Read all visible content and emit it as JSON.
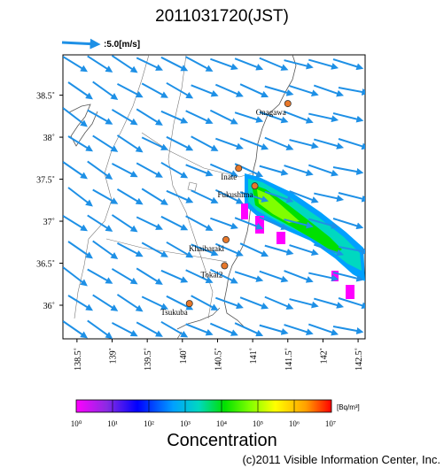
{
  "title": "2011031720(JST)",
  "wind_legend": {
    "label": ":5.0[m/s]",
    "reference_speed_ms": 5.0,
    "color": "#1e90e6"
  },
  "axes": {
    "lon_range": [
      138.3,
      142.6
    ],
    "lat_range": [
      35.6,
      38.98
    ],
    "x_ticks": [
      "138.5˚",
      "139˚",
      "139.5˚",
      "140˚",
      "140.5˚",
      "141˚",
      "141.5˚",
      "142˚",
      "142.5˚"
    ],
    "x_tick_values": [
      138.5,
      139.0,
      139.5,
      140.0,
      140.5,
      141.0,
      141.5,
      142.0,
      142.5
    ],
    "y_ticks": [
      "38.5˚",
      "38˚",
      "37.5˚",
      "37˚",
      "36.5˚",
      "36˚"
    ],
    "y_tick_values": [
      38.5,
      38.0,
      37.5,
      37.0,
      36.5,
      36.0
    ]
  },
  "places": [
    {
      "name": "Onagawa",
      "lon": 141.5,
      "lat": 38.4,
      "marker": true
    },
    {
      "name": "Inate",
      "lon": 140.8,
      "lat": 37.63,
      "marker": true
    },
    {
      "name": "Fukushima",
      "lon": 141.03,
      "lat": 37.42,
      "marker": true
    },
    {
      "name": "Khaibaraki",
      "lon": 140.62,
      "lat": 36.78,
      "marker": true
    },
    {
      "name": "Tokai2",
      "lon": 140.6,
      "lat": 36.47,
      "marker": true
    },
    {
      "name": "Tsukuba",
      "lon": 140.1,
      "lat": 36.02,
      "marker": true
    }
  ],
  "marker_color": "#e8782a",
  "colorbar": {
    "title": "Concentration",
    "unit": "[Bq/m³]",
    "tick_labels": [
      "10⁰",
      "10¹",
      "10²",
      "10³",
      "10⁴",
      "10⁵",
      "10⁶",
      "10⁷"
    ],
    "stops": [
      "#ff00ff",
      "#8a2be2",
      "#0000ff",
      "#00a0ff",
      "#00d8c0",
      "#00e000",
      "#7fff00",
      "#ffff00",
      "#ffa000",
      "#ff0000"
    ]
  },
  "copyright": "(c)2011 Visible Information Center, Inc."
}
